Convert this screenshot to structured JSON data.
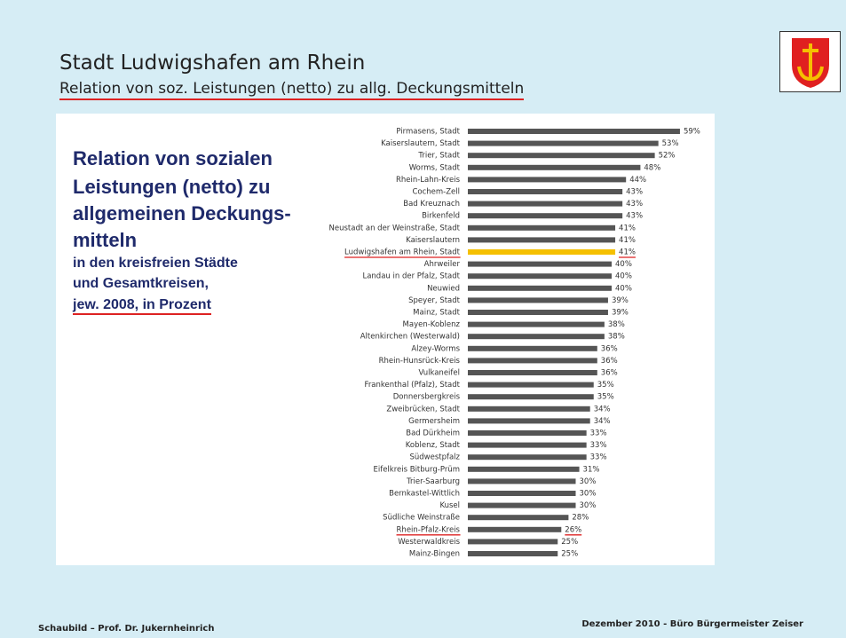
{
  "slide": {
    "title": "Stadt Ludwigshafen am Rhein",
    "subtitle": "Relation von soz. Leistungen (netto) zu allg. Deckungsmitteln",
    "heading_lines": [
      "Relation von sozialen",
      "Leistungen (netto) zu",
      "allgemeinen Deckungs-",
      "mitteln"
    ],
    "sub_lines": [
      "in den kreisfreien Städte",
      "und Gesamtkreisen,",
      "jew. 2008, in Prozent"
    ],
    "footer_left": "Schaubild – Prof. Dr. Jukernheinrich",
    "footer_right": "Dezember 2010 - Büro Bürgermeister Zeiser"
  },
  "chart_data": {
    "type": "hbar",
    "categories": [
      "Pirmasens, Stadt",
      "Kaiserslautern, Stadt",
      "Trier, Stadt",
      "Worms, Stadt",
      "Rhein-Lahn-Kreis",
      "Cochem-Zell",
      "Bad Kreuznach",
      "Birkenfeld",
      "Neustadt an der Weinstraße, Stadt",
      "Kaiserslautern",
      "Ludwigshafen am Rhein, Stadt",
      "Ahrweiler",
      "Landau in der Pfalz, Stadt",
      "Neuwied",
      "Speyer, Stadt",
      "Mainz, Stadt",
      "Mayen-Koblenz",
      "Altenkirchen (Westerwald)",
      "Alzey-Worms",
      "Rhein-Hunsrück-Kreis",
      "Vulkaneifel",
      "Frankenthal (Pfalz), Stadt",
      "Donnersbergkreis",
      "Zweibrücken, Stadt",
      "Germersheim",
      "Bad Dürkheim",
      "Koblenz, Stadt",
      "Südwestpfalz",
      "Eifelkreis Bitburg-Prüm",
      "Trier-Saarburg",
      "Bernkastel-Wittlich",
      "Kusel",
      "Südliche Weinstraße",
      "Rhein-Pfalz-Kreis",
      "Westerwaldkreis",
      "Mainz-Bingen"
    ],
    "values": [
      59,
      53,
      52,
      48,
      44,
      43,
      43,
      43,
      41,
      41,
      41,
      40,
      40,
      40,
      39,
      39,
      38,
      38,
      36,
      36,
      36,
      35,
      35,
      34,
      34,
      33,
      33,
      33,
      31,
      30,
      30,
      30,
      28,
      26,
      25,
      25
    ],
    "value_labels": [
      "59%",
      "53%",
      "52%",
      "48%",
      "44%",
      "43%",
      "43%",
      "43%",
      "41%",
      "41%",
      "41%",
      "40%",
      "40%",
      "40%",
      "39%",
      "39%",
      "38%",
      "38%",
      "36%",
      "36%",
      "36%",
      "35%",
      "35%",
      "34%",
      "34%",
      "33%",
      "33%",
      "33%",
      "31%",
      "30%",
      "30%",
      "30%",
      "28%",
      "26%",
      "25%",
      "25%"
    ],
    "colors": [
      "#555555",
      "#555555",
      "#555555",
      "#555555",
      "#555555",
      "#555555",
      "#555555",
      "#555555",
      "#555555",
      "#555555",
      "#f5c000",
      "#555555",
      "#555555",
      "#555555",
      "#555555",
      "#555555",
      "#555555",
      "#555555",
      "#555555",
      "#555555",
      "#555555",
      "#555555",
      "#555555",
      "#555555",
      "#555555",
      "#555555",
      "#555555",
      "#555555",
      "#555555",
      "#555555",
      "#555555",
      "#555555",
      "#555555",
      "#555555",
      "#555555",
      "#555555"
    ]
  }
}
